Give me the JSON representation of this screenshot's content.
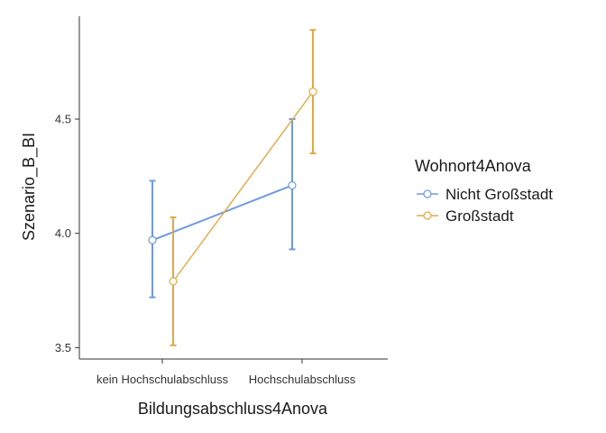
{
  "chart_data": {
    "type": "line",
    "title": "",
    "xlabel": "Bildungsabschluss4Anova",
    "ylabel": "Szenario_B_BI",
    "categories": [
      "kein Hochschulabschluss",
      "Hochschulabschluss"
    ],
    "ylim": [
      3.45,
      4.95
    ],
    "yticks": [
      3.5,
      4.0,
      4.5
    ],
    "ytick_labels": [
      "3.5",
      "4.0",
      "4.5"
    ],
    "grid": false,
    "legend": {
      "title": "Wohnort4Anova",
      "position": "right"
    },
    "series": [
      {
        "name": "Nicht Großstadt",
        "color": "#6f9ae0",
        "values": [
          3.97,
          4.21
        ],
        "lower": [
          3.72,
          3.93
        ],
        "upper": [
          4.23,
          4.5
        ]
      },
      {
        "name": "Großstadt",
        "color": "#e3a844",
        "values": [
          3.79,
          4.62
        ],
        "lower": [
          3.51,
          4.35
        ],
        "upper": [
          4.07,
          4.89
        ]
      }
    ]
  }
}
